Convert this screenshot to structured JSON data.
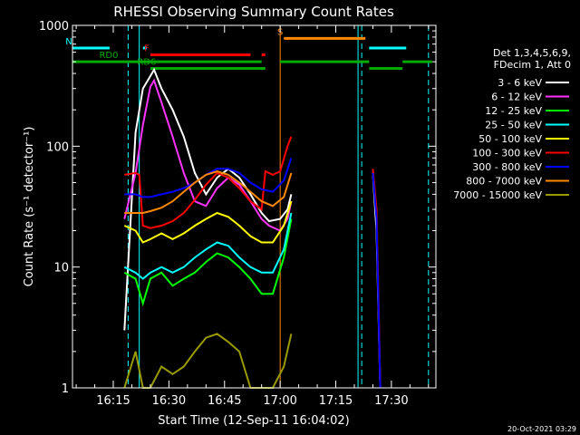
{
  "chart_data": {
    "type": "line",
    "title": "RHESSI Observing Summary Count Rates",
    "xlabel": "Start Time (12-Sep-11 16:04:02)",
    "ylabel": "Count Rate (s⁻¹ detector⁻¹)",
    "yscale": "log",
    "ylim": [
      1,
      1000
    ],
    "xlim": [
      "16:04",
      "17:42"
    ],
    "yticks": [
      {
        "value": 1,
        "label": "1"
      },
      {
        "value": 10,
        "label": "10"
      },
      {
        "value": 100,
        "label": "100"
      },
      {
        "value": 1000,
        "label": "1000"
      }
    ],
    "xticks": [
      "16:15",
      "16:30",
      "16:45",
      "17:00",
      "17:15",
      "17:30"
    ],
    "legend_header": [
      "Det 1,3,4,5,6,9,",
      "FDecim 1, Att 0"
    ],
    "legend_placement": "right",
    "series": [
      {
        "name": "3 - 6 keV",
        "color": "#ffffff",
        "x": [
          "16:18",
          "16:21",
          "16:23",
          "16:25",
          "16:26",
          "16:28",
          "16:31",
          "16:34",
          "16:37",
          "16:40",
          "16:43",
          "16:46",
          "16:49",
          "16:52",
          "16:55",
          "16:57",
          "17:00",
          "17:02",
          "17:03"
        ],
        "y": [
          3,
          130,
          300,
          380,
          430,
          300,
          200,
          120,
          60,
          40,
          55,
          65,
          55,
          40,
          28,
          24,
          25,
          30,
          40
        ]
      },
      {
        "name": "6 - 12 keV",
        "color": "#ff33ff",
        "x": [
          "16:18",
          "16:21",
          "16:23",
          "16:25",
          "16:26",
          "16:28",
          "16:31",
          "16:34",
          "16:37",
          "16:40",
          "16:43",
          "16:46",
          "16:49",
          "16:52",
          "16:55",
          "16:57",
          "17:00",
          "17:02",
          "17:03"
        ],
        "y": [
          25,
          60,
          150,
          310,
          350,
          230,
          120,
          60,
          35,
          32,
          45,
          55,
          48,
          35,
          25,
          22,
          20,
          25,
          35
        ]
      },
      {
        "name": "12 - 25 keV",
        "color": "#00ff00",
        "x": [
          "16:18",
          "16:21",
          "16:23",
          "16:25",
          "16:28",
          "16:31",
          "16:34",
          "16:37",
          "16:40",
          "16:43",
          "16:46",
          "16:49",
          "16:52",
          "16:55",
          "16:58",
          "17:01",
          "17:03"
        ],
        "y": [
          9,
          8,
          5,
          8,
          9,
          7,
          8,
          9,
          11,
          13,
          12,
          10,
          8,
          6,
          6,
          12,
          25
        ]
      },
      {
        "name": "25 - 50 keV",
        "color": "#00ffff",
        "x": [
          "16:18",
          "16:21",
          "16:23",
          "16:25",
          "16:28",
          "16:31",
          "16:34",
          "16:37",
          "16:40",
          "16:43",
          "16:46",
          "16:49",
          "16:52",
          "16:55",
          "16:58",
          "17:01",
          "17:03"
        ],
        "y": [
          10,
          9,
          8,
          9,
          10,
          9,
          10,
          12,
          14,
          16,
          15,
          12,
          10,
          9,
          9,
          14,
          28
        ]
      },
      {
        "name": "50 - 100 keV",
        "color": "#ffff00",
        "x": [
          "16:18",
          "16:21",
          "16:23",
          "16:25",
          "16:28",
          "16:31",
          "16:34",
          "16:37",
          "16:40",
          "16:43",
          "16:46",
          "16:49",
          "16:52",
          "16:55",
          "16:58",
          "17:01",
          "17:03"
        ],
        "y": [
          22,
          20,
          16,
          17,
          19,
          17,
          19,
          22,
          25,
          28,
          26,
          22,
          18,
          16,
          16,
          22,
          35
        ]
      },
      {
        "name": "100 - 300 keV",
        "color": "#ff0000",
        "x": [
          "16:18",
          "16:21",
          "16:22",
          "16:23",
          "16:25",
          "16:28",
          "16:31",
          "16:34",
          "16:37",
          "16:40",
          "16:43",
          "16:46",
          "16:49",
          "16:52",
          "16:55",
          "16:56",
          "16:58",
          "17:00",
          "17:02",
          "17:03"
        ],
        "y": [
          58,
          60,
          58,
          22,
          21,
          22,
          24,
          28,
          36,
          48,
          60,
          55,
          45,
          35,
          30,
          62,
          58,
          62,
          100,
          120
        ]
      },
      {
        "name": "300 - 800 keV",
        "color": "#0000ff",
        "x": [
          "16:18",
          "16:21",
          "16:23",
          "16:25",
          "16:28",
          "16:31",
          "16:34",
          "16:37",
          "16:40",
          "16:43",
          "16:46",
          "16:49",
          "16:52",
          "16:55",
          "16:58",
          "17:01",
          "17:03"
        ],
        "y": [
          40,
          40,
          38,
          38,
          40,
          42,
          45,
          50,
          58,
          65,
          65,
          60,
          50,
          44,
          42,
          52,
          80
        ]
      },
      {
        "name": "800 - 7000 keV",
        "color": "#ff8800",
        "x": [
          "16:18",
          "16:21",
          "16:23",
          "16:25",
          "16:28",
          "16:31",
          "16:34",
          "16:37",
          "16:40",
          "16:43",
          "16:46",
          "16:49",
          "16:52",
          "16:55",
          "16:58",
          "17:01",
          "17:03"
        ],
        "y": [
          28,
          28,
          28,
          29,
          31,
          35,
          42,
          50,
          58,
          62,
          58,
          50,
          42,
          35,
          32,
          38,
          60
        ]
      },
      {
        "name": "7000 - 15000 keV",
        "color": "#999900",
        "x": [
          "16:18",
          "16:21",
          "16:23",
          "16:25",
          "16:28",
          "16:31",
          "16:34",
          "16:37",
          "16:40",
          "16:43",
          "16:46",
          "16:49",
          "16:52",
          "16:55",
          "16:58",
          "17:01",
          "17:03"
        ],
        "y": [
          1,
          2,
          1,
          1,
          1.5,
          1.3,
          1.5,
          2,
          2.6,
          2.8,
          2.4,
          2,
          1,
          1,
          1,
          1.5,
          2.8
        ]
      }
    ],
    "extra_segments": [
      {
        "series": "3 - 6 keV",
        "x": [
          "17:25",
          "17:26",
          "17:27"
        ],
        "y": [
          60,
          20,
          1
        ]
      },
      {
        "series": "100 - 300 keV",
        "x": [
          "17:25",
          "17:26",
          "17:27"
        ],
        "y": [
          65,
          30,
          1
        ]
      },
      {
        "series": "300 - 800 keV",
        "x": [
          "17:25",
          "17:26",
          "17:27"
        ],
        "y": [
          60,
          25,
          1
        ]
      }
    ],
    "flag_bars": [
      {
        "label": "N",
        "color": "#00ffff",
        "y": 650,
        "spans": [
          [
            "16:04",
            "16:14"
          ],
          [
            "16:23",
            "16:24"
          ],
          [
            "17:24",
            "17:34"
          ]
        ]
      },
      {
        "label": "S",
        "color": "#ff8800",
        "y": 780,
        "spans": [
          [
            "17:01",
            "17:23"
          ]
        ]
      },
      {
        "label": "F",
        "color": "#ff0000",
        "y": 570,
        "spans": [
          [
            "16:25",
            "16:52"
          ],
          [
            "16:55",
            "16:56"
          ]
        ]
      },
      {
        "label": "RD0",
        "color": "#00aa00",
        "y": 500,
        "spans": [
          [
            "16:04",
            "16:55"
          ],
          [
            "17:00",
            "17:24"
          ],
          [
            "17:33",
            "17:41"
          ]
        ]
      },
      {
        "label": "RD6",
        "color": "#00aa00",
        "y": 440,
        "spans": [
          [
            "16:25",
            "16:56"
          ],
          [
            "17:24",
            "17:33"
          ]
        ]
      }
    ],
    "vertical_lines": [
      {
        "x": "16:04",
        "color": "#00ffff",
        "dashed": false
      },
      {
        "x": "16:19",
        "color": "#00ffff",
        "dashed": true
      },
      {
        "x": "16:22",
        "color": "#00ffff",
        "dashed": false
      },
      {
        "x": "17:00",
        "color": "#ff8800",
        "dashed": false
      },
      {
        "x": "17:21",
        "color": "#00ffff",
        "dashed": false
      },
      {
        "x": "17:22",
        "color": "#00ffff",
        "dashed": true
      },
      {
        "x": "17:40",
        "color": "#00ffff",
        "dashed": true
      }
    ]
  },
  "footer": {
    "timestamp": "20-Oct-2021 03:29"
  }
}
